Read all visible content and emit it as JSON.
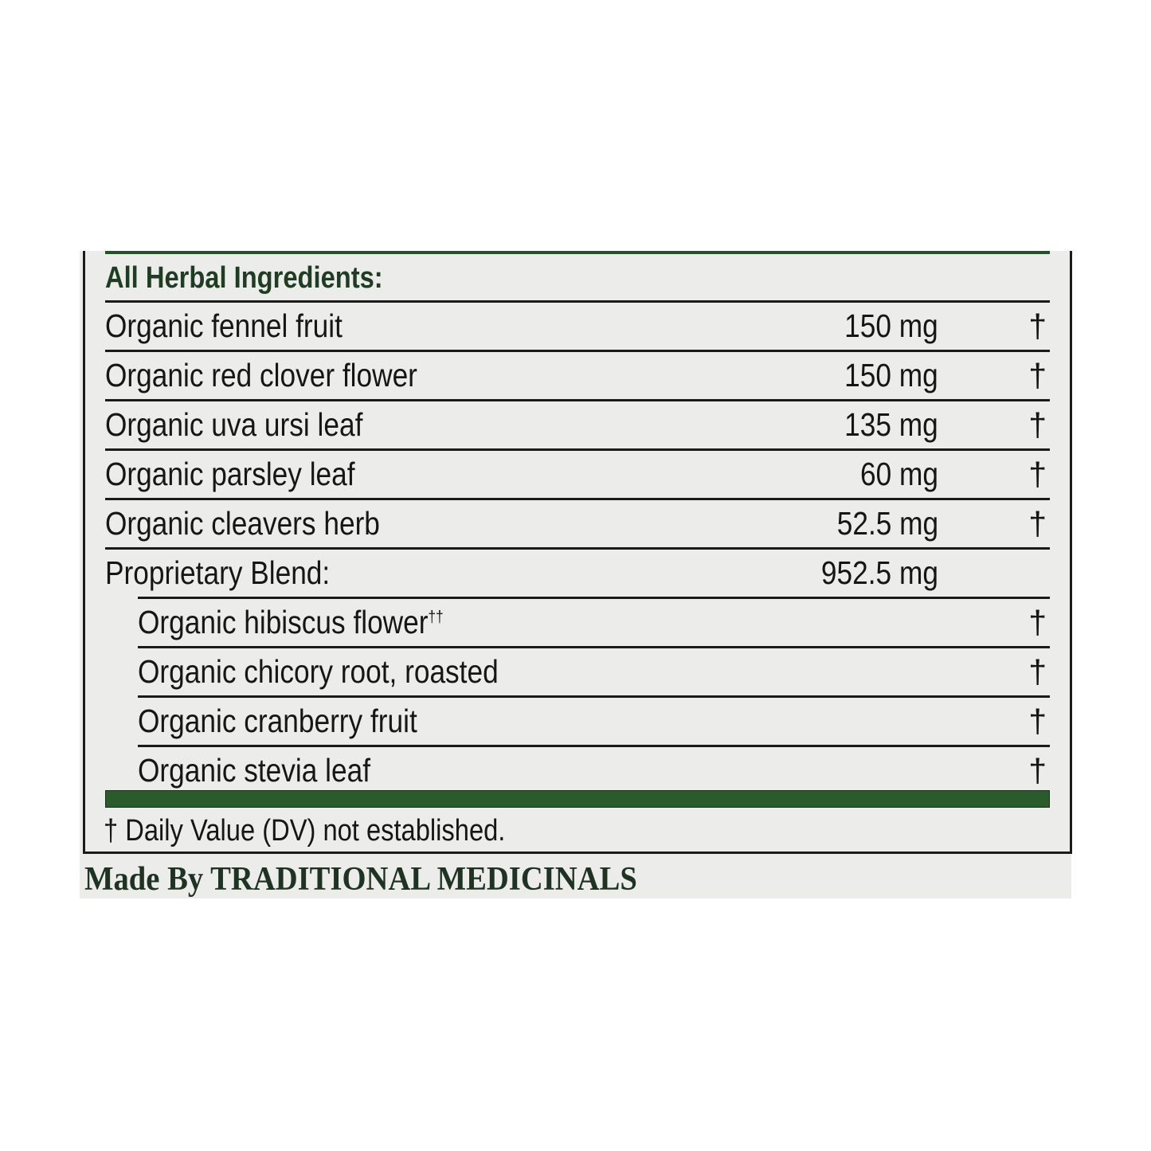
{
  "header": "All Herbal Ingredients:",
  "rows": [
    {
      "name": "Organic fennel fruit",
      "amount": "150 mg",
      "mark": "†"
    },
    {
      "name": "Organic red clover flower",
      "amount": "150 mg",
      "mark": "†"
    },
    {
      "name": "Organic uva ursi leaf",
      "amount": "135 mg",
      "mark": "†"
    },
    {
      "name": "Organic parsley leaf",
      "amount": "60 mg",
      "mark": "†"
    },
    {
      "name": "Organic cleavers herb",
      "amount": "52.5 mg",
      "mark": "†"
    },
    {
      "name": "Proprietary Blend:",
      "amount": "952.5 mg",
      "mark": ""
    }
  ],
  "blend": [
    {
      "name": "Organic hibiscus flower",
      "sup": "††",
      "mark": "†"
    },
    {
      "name": "Organic chicory root, roasted",
      "mark": "†"
    },
    {
      "name": "Organic cranberry fruit",
      "mark": "†"
    },
    {
      "name": "Organic stevia leaf",
      "mark": "†"
    }
  ],
  "footnote": "† Daily Value (DV) not established.",
  "maker": "Made By TRADITIONAL MEDICINALS",
  "colors": {
    "accent_green": "#2b5a2c",
    "panel": "#ececeb"
  }
}
